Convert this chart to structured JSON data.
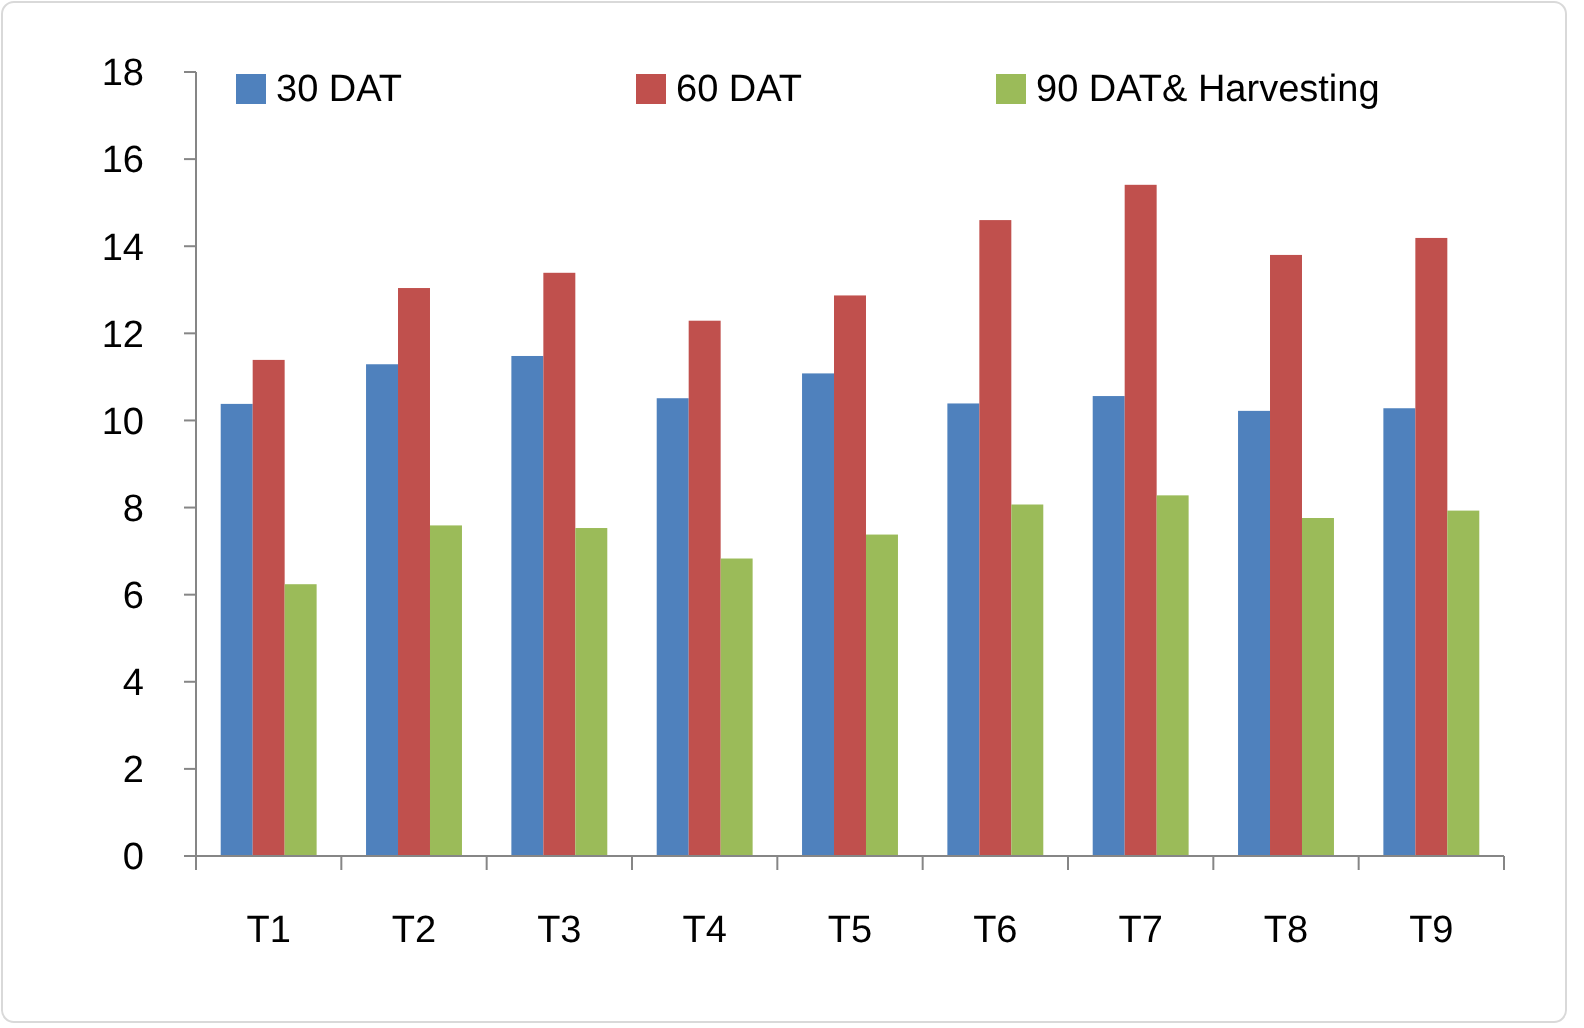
{
  "chart_data": {
    "type": "bar",
    "categories": [
      "T1",
      "T2",
      "T3",
      "T4",
      "T5",
      "T6",
      "T7",
      "T8",
      "T9"
    ],
    "series": [
      {
        "name": "30 DAT",
        "color": "#4f81bd",
        "values": [
          10.38,
          11.29,
          11.48,
          10.51,
          11.08,
          10.39,
          10.56,
          10.22,
          10.28
        ]
      },
      {
        "name": "60 DAT",
        "color": "#c0504d",
        "values": [
          11.39,
          13.04,
          13.39,
          12.29,
          12.87,
          14.6,
          15.41,
          13.8,
          14.19
        ]
      },
      {
        "name": "90 DAT& Harvesting",
        "color": "#9bbb59",
        "values": [
          6.24,
          7.59,
          7.53,
          6.83,
          7.38,
          8.07,
          8.28,
          7.76,
          7.93
        ]
      }
    ],
    "ylim": [
      0,
      18
    ],
    "yticks": [
      0,
      2,
      4,
      6,
      8,
      10,
      12,
      14,
      16,
      18
    ],
    "grid": false,
    "legend": "top"
  }
}
